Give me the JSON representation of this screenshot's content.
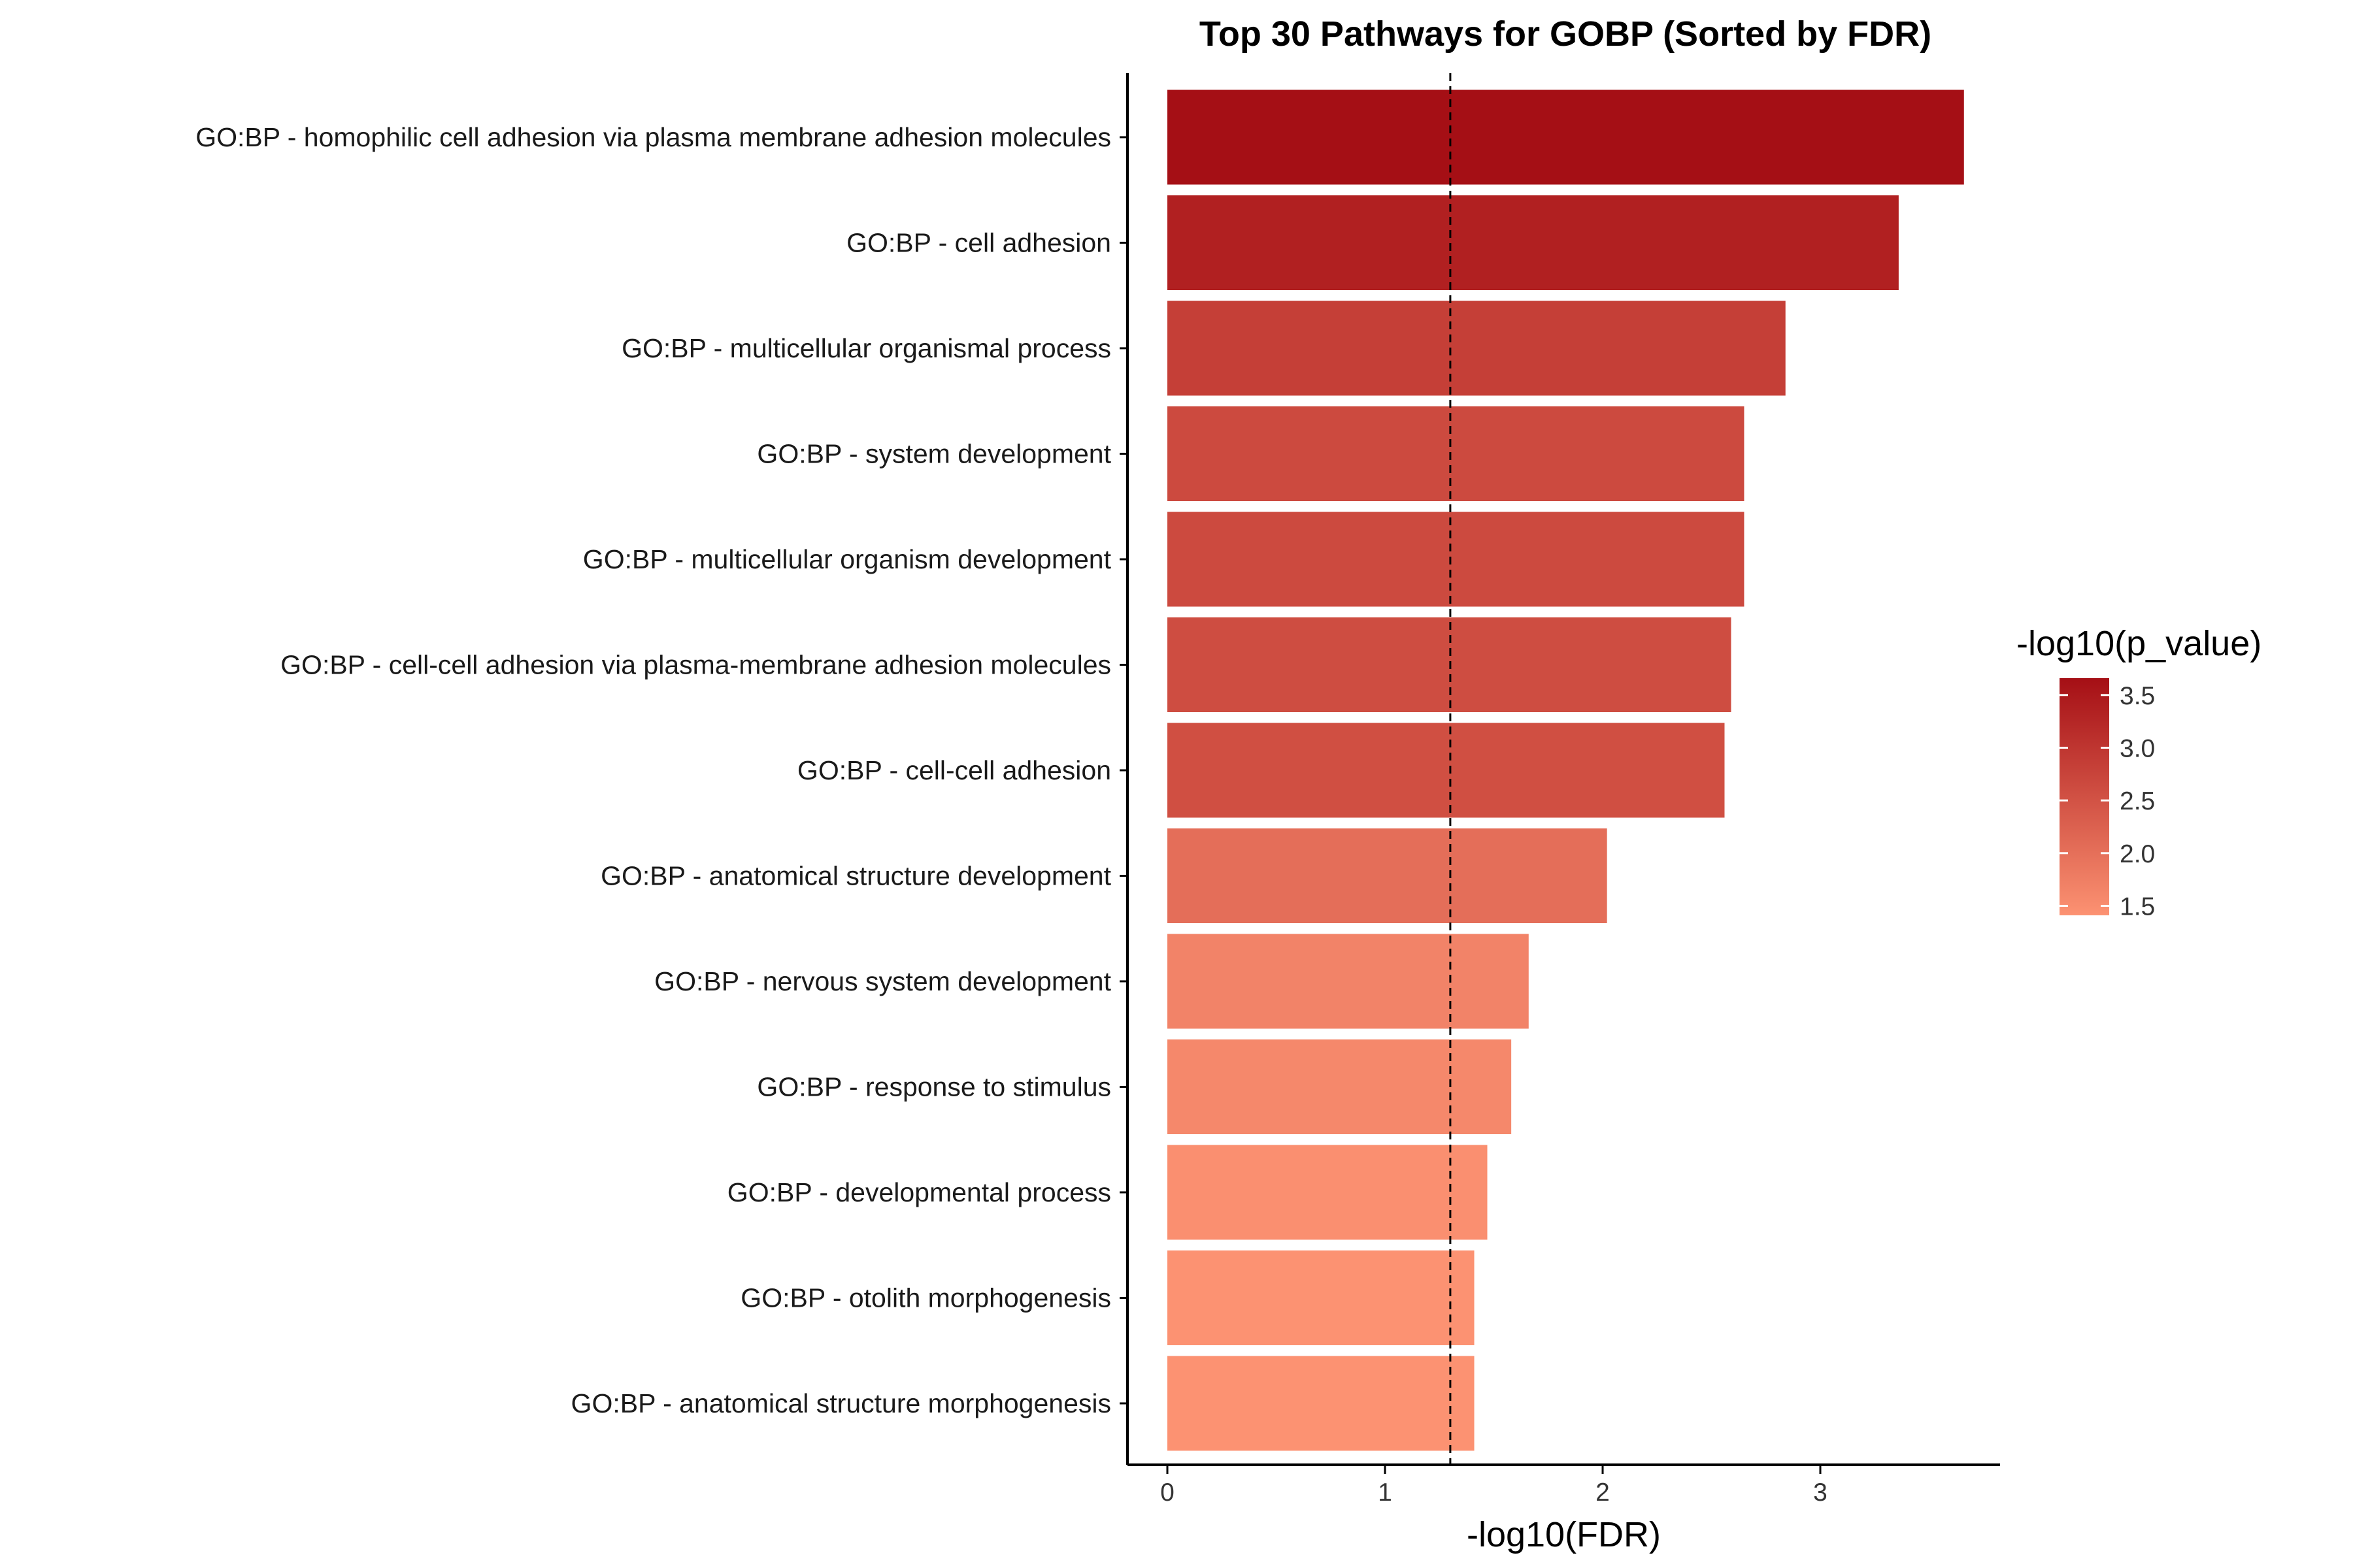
{
  "chart_data": {
    "type": "bar",
    "orientation": "horizontal",
    "title": "Top 30 Pathways for GOBP (Sorted by FDR)",
    "xlabel": "-log10(FDR)",
    "ylabel": "",
    "xlim": [
      -0.18,
      3.8
    ],
    "xticks": [
      0,
      1,
      2,
      3
    ],
    "reference_line": {
      "x": 1.3,
      "style": "dashed"
    },
    "grid": false,
    "categories": [
      "GO:BP - homophilic cell adhesion via plasma membrane adhesion molecules",
      "GO:BP - cell adhesion",
      "GO:BP - multicellular organismal process",
      "GO:BP - system development",
      "GO:BP - multicellular organism development",
      "GO:BP - cell-cell adhesion via plasma-membrane adhesion molecules",
      "GO:BP - cell-cell adhesion",
      "GO:BP - anatomical structure development",
      "GO:BP - nervous system development",
      "GO:BP - response to stimulus",
      "GO:BP - developmental process",
      "GO:BP - otolith morphogenesis",
      "GO:BP - anatomical structure morphogenesis"
    ],
    "values": [
      3.66,
      3.36,
      2.84,
      2.65,
      2.65,
      2.59,
      2.56,
      2.02,
      1.66,
      1.58,
      1.47,
      1.41,
      1.41
    ],
    "color_values": [
      3.66,
      3.36,
      2.84,
      2.65,
      2.65,
      2.59,
      2.56,
      2.02,
      1.66,
      1.58,
      1.47,
      1.41,
      1.41
    ],
    "legend": {
      "title": "-log10(p_value)",
      "position": "right",
      "ticks": [
        3.5,
        3.0,
        2.5,
        2.0,
        1.5
      ],
      "tick_labels": [
        "3.5",
        "3.0",
        "2.5",
        "2.0",
        "1.5"
      ],
      "range": [
        1.41,
        3.66
      ]
    },
    "colors": {
      "low": "#fc9272",
      "high": "#a50f15",
      "axis": "#000000"
    }
  }
}
